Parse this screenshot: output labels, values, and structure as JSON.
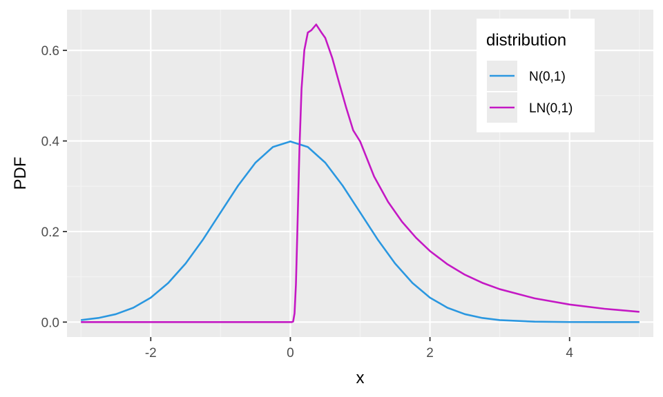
{
  "chart_data": {
    "type": "line",
    "title": "",
    "xlabel": "x",
    "ylabel": "PDF",
    "xlim": [
      -3.2,
      5.2
    ],
    "ylim": [
      -0.033,
      0.69
    ],
    "x_ticks": [
      -2,
      0,
      2,
      4
    ],
    "x_tick_labels": [
      "-2",
      "0",
      "2",
      "4"
    ],
    "x_minor_ticks": [
      -3,
      -1,
      1,
      3,
      5
    ],
    "y_ticks": [
      0.0,
      0.2,
      0.4,
      0.6
    ],
    "y_tick_labels": [
      "0.0",
      "0.2",
      "0.4",
      "0.6"
    ],
    "y_minor_ticks": [
      0.1,
      0.3,
      0.5
    ],
    "grid": true,
    "legend": {
      "title": "distribution",
      "placement": "top-right, inside plot"
    },
    "series": [
      {
        "name": "N(0,1)",
        "color": "#2A97E0",
        "points": [
          [
            -3.0,
            0.0044
          ],
          [
            -2.75,
            0.0091
          ],
          [
            -2.5,
            0.0175
          ],
          [
            -2.25,
            0.0317
          ],
          [
            -2.0,
            0.054
          ],
          [
            -1.75,
            0.0863
          ],
          [
            -1.5,
            0.1295
          ],
          [
            -1.25,
            0.1826
          ],
          [
            -1.0,
            0.242
          ],
          [
            -0.75,
            0.3011
          ],
          [
            -0.5,
            0.3521
          ],
          [
            -0.25,
            0.3867
          ],
          [
            0.0,
            0.3989
          ],
          [
            0.25,
            0.3867
          ],
          [
            0.5,
            0.3521
          ],
          [
            0.75,
            0.3011
          ],
          [
            1.0,
            0.242
          ],
          [
            1.25,
            0.1826
          ],
          [
            1.5,
            0.1295
          ],
          [
            1.75,
            0.0863
          ],
          [
            2.0,
            0.054
          ],
          [
            2.25,
            0.0317
          ],
          [
            2.5,
            0.0175
          ],
          [
            2.75,
            0.0091
          ],
          [
            3.0,
            0.0044
          ],
          [
            3.5,
            0.0009
          ],
          [
            4.0,
            0.0001
          ],
          [
            4.5,
            0.0
          ],
          [
            5.0,
            0.0
          ]
        ]
      },
      {
        "name": "LN(0,1)",
        "color": "#C418C4",
        "points": [
          [
            -3.0,
            0.0
          ],
          [
            -2.0,
            0.0
          ],
          [
            -1.0,
            0.0
          ],
          [
            0.0,
            0.0
          ],
          [
            0.02,
            0.0
          ],
          [
            0.04,
            0.0012
          ],
          [
            0.06,
            0.0193
          ],
          [
            0.08,
            0.0835
          ],
          [
            0.1,
            0.1995
          ],
          [
            0.13,
            0.3813
          ],
          [
            0.16,
            0.5147
          ],
          [
            0.2,
            0.6003
          ],
          [
            0.25,
            0.6394
          ],
          [
            0.3,
            0.6444
          ],
          [
            0.37,
            0.6572
          ],
          [
            0.45,
            0.6384
          ],
          [
            0.5,
            0.6276
          ],
          [
            0.6,
            0.5834
          ],
          [
            0.7,
            0.5278
          ],
          [
            0.8,
            0.4734
          ],
          [
            0.9,
            0.4236
          ],
          [
            1.0,
            0.3989
          ],
          [
            1.2,
            0.3214
          ],
          [
            1.4,
            0.2656
          ],
          [
            1.6,
            0.2216
          ],
          [
            1.8,
            0.1863
          ],
          [
            2.0,
            0.1569
          ],
          [
            2.25,
            0.1277
          ],
          [
            2.5,
            0.1046
          ],
          [
            2.75,
            0.0867
          ],
          [
            3.0,
            0.0727
          ],
          [
            3.5,
            0.0524
          ],
          [
            4.0,
            0.0388
          ],
          [
            4.5,
            0.0294
          ],
          [
            5.0,
            0.0227
          ]
        ]
      }
    ]
  },
  "colors": {
    "panel_background": "#EBEBEB",
    "major_grid": "#FFFFFF",
    "minor_grid": "#F4F4F4",
    "tick_color": "#333333",
    "tick_label_color": "#4D4D4D"
  }
}
